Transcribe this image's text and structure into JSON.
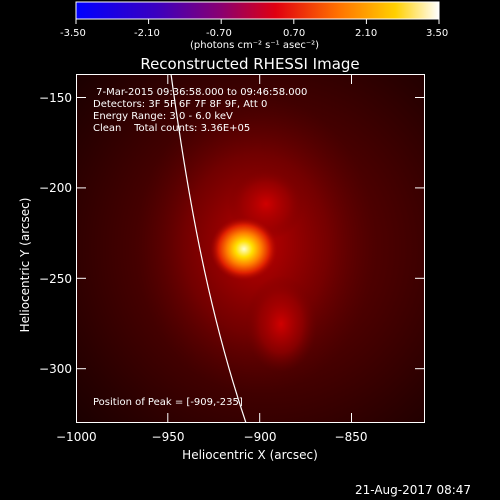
{
  "colorbar": {
    "tick_labels": [
      "-3.50",
      "-2.10",
      "-0.70",
      "0.70",
      "2.10",
      "3.50"
    ],
    "unit_label": "(photons cm⁻² s⁻¹ asec⁻²)",
    "range": [
      -3.5,
      3.5
    ],
    "colormap_stops": [
      "#0000ff",
      "#5a00a8",
      "#d4002a",
      "#ff6a00",
      "#ffcc00",
      "#ffffff"
    ]
  },
  "plot": {
    "title": "Reconstructed RHESSI Image",
    "annotation_lines": [
      " 7-Mar-2015 09:36:58.000 to 09:46:58.000",
      "Detectors: 3F 5F 6F 7F 8F 9F, Att 0",
      "Energy Range: 3.0 - 6.0 keV",
      "Clean    Total counts: 3.36E+05"
    ],
    "peak_text": "Position of Peak = [-909,-235]",
    "x_axis": {
      "label": "Heliocentric X (arcsec)",
      "range": [
        -1000,
        -810
      ],
      "ticks": [
        -1000,
        -950,
        -900,
        -850
      ],
      "tick_labels": [
        "−1000",
        "−950",
        "−900",
        "−850"
      ]
    },
    "y_axis": {
      "label": "Heliocentric Y (arcsec)",
      "range": [
        -330,
        -137
      ],
      "ticks": [
        -150,
        -200,
        -250,
        -300
      ],
      "tick_labels": [
        "−150",
        "−200",
        "−250",
        "−300"
      ]
    }
  },
  "footer": {
    "timestamp": "21-Aug-2017 08:47"
  }
}
